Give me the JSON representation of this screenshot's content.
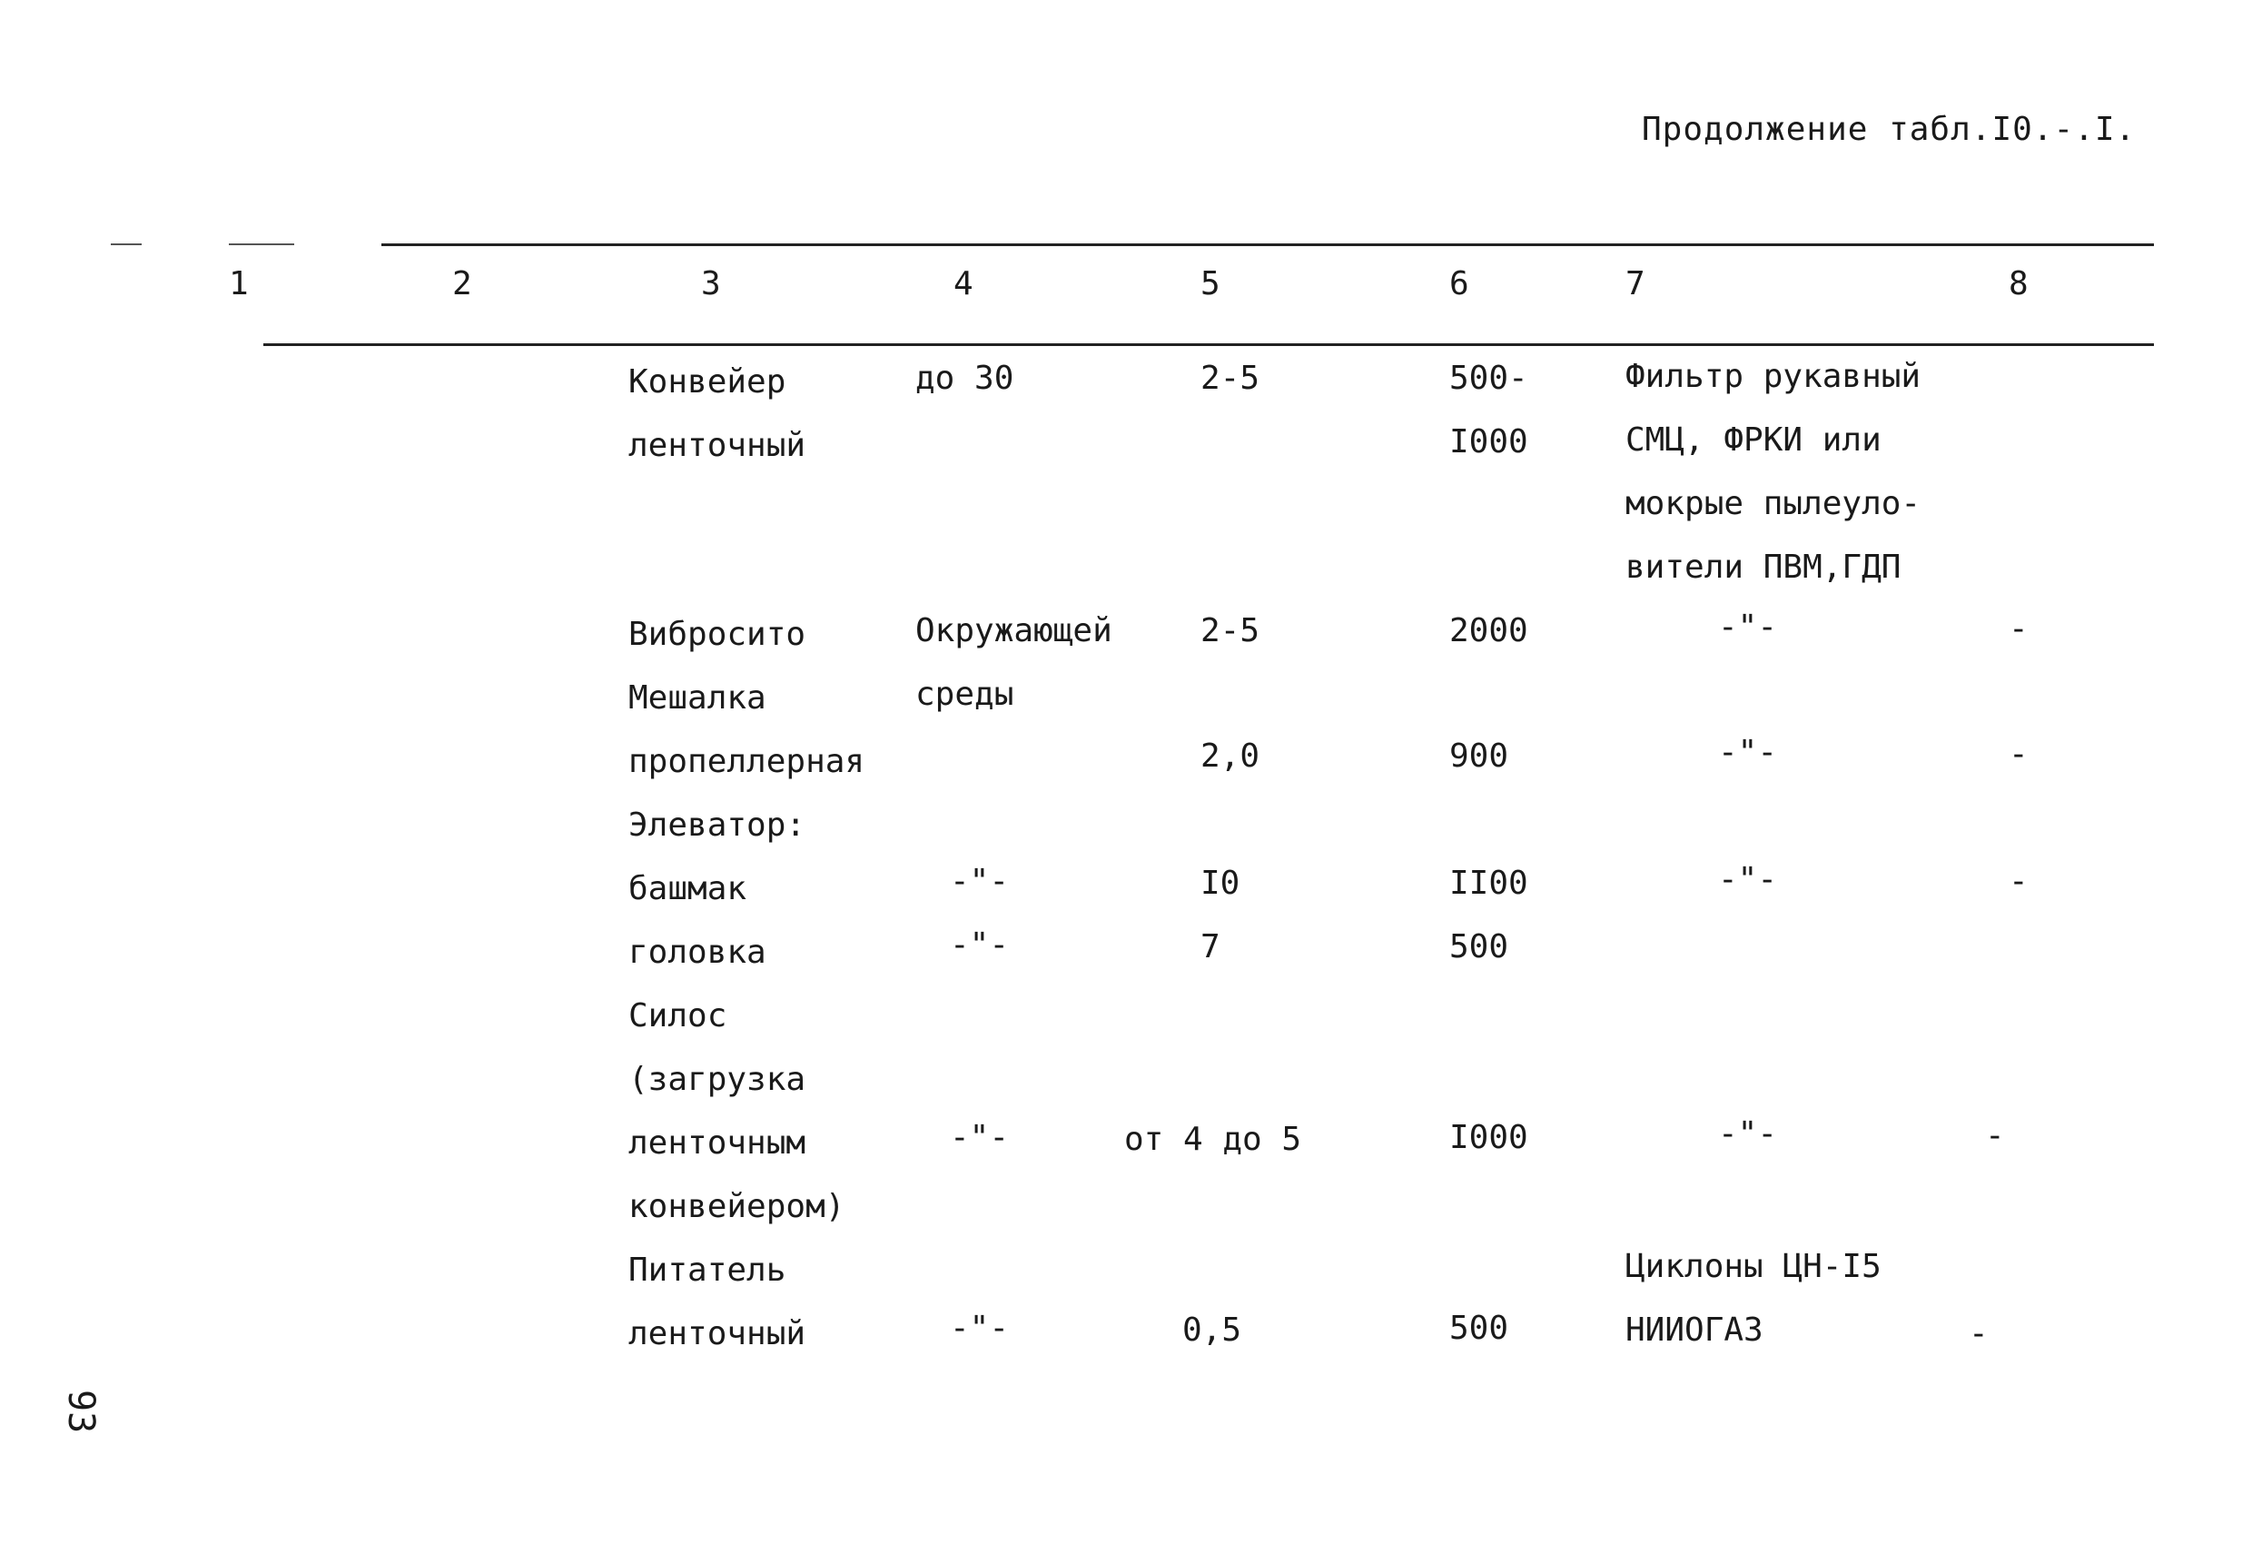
{
  "caption": "Продолжение табл.I0.-.I.",
  "headers": [
    "1",
    "2",
    "3",
    "4",
    "5",
    "6",
    "7",
    "8"
  ],
  "rows": [
    {
      "c3": [
        "Конвейер",
        "ленточный"
      ],
      "c4": [
        "до 30"
      ],
      "c5": [
        "2-5"
      ],
      "c6": [
        "500-",
        "I000"
      ],
      "c7": [
        "Фильтр рукавный",
        "СМЦ, ФРКИ или",
        "мокрые пылеуло-",
        "вители ПВМ,ГДП"
      ],
      "c8": []
    },
    {
      "c3": [
        "Вибросито"
      ],
      "c4": [
        "Окружающей",
        "среды"
      ],
      "c5": [
        "2-5"
      ],
      "c6": [
        "2000"
      ],
      "c7": [
        "-\"-"
      ],
      "c8": [
        "-"
      ]
    },
    {
      "c3": [
        "Мешалка",
        "пропеллерная"
      ],
      "c4": [],
      "c5": [
        "2,0"
      ],
      "c6": [
        "900"
      ],
      "c7": [
        "-\"-"
      ],
      "c8": [
        "-"
      ]
    },
    {
      "c3": [
        "Элеватор:"
      ],
      "c4": [],
      "c5": [],
      "c6": [],
      "c7": [],
      "c8": []
    },
    {
      "c3": [
        "башмак"
      ],
      "c4": [
        "-\"-"
      ],
      "c5": [
        "I0"
      ],
      "c6": [
        "II00"
      ],
      "c7": [
        "-\"-"
      ],
      "c8": [
        "-"
      ]
    },
    {
      "c3": [
        "головка"
      ],
      "c4": [
        "-\"-"
      ],
      "c5": [
        "7"
      ],
      "c6": [
        "500"
      ],
      "c7": [],
      "c8": []
    },
    {
      "c3": [
        "Силос",
        "(загрузка",
        "ленточным",
        "конвейером)"
      ],
      "c4": [
        "-\"-"
      ],
      "c5": [
        "от 4 до 5"
      ],
      "c6": [
        "I000"
      ],
      "c7": [
        "-\"-"
      ],
      "c8": [
        "-"
      ]
    },
    {
      "c3": [
        "Питатель",
        "ленточный"
      ],
      "c4": [
        "-\"-"
      ],
      "c5": [
        "0,5"
      ],
      "c6": [
        "500"
      ],
      "c7": [
        "Циклоны ЦН-I5",
        "НИИОГАЗ"
      ],
      "c8": [
        "-"
      ]
    }
  ],
  "page_number": "93"
}
